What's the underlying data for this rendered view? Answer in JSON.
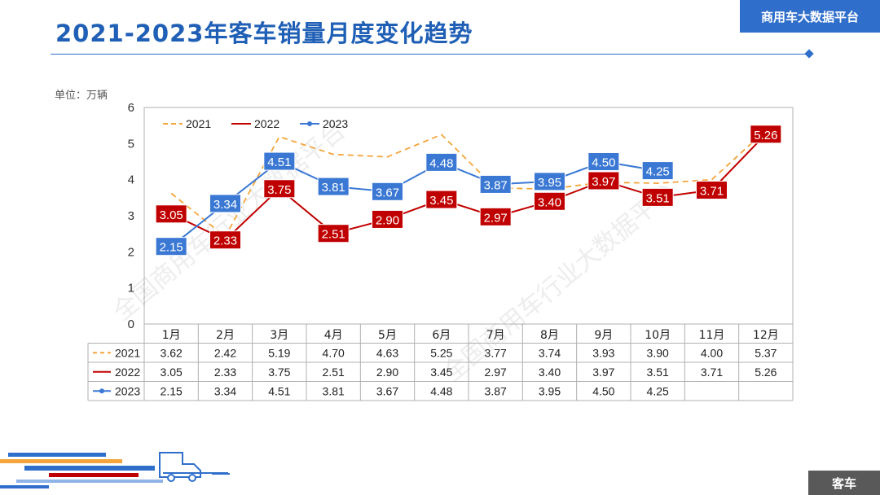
{
  "header": {
    "title": "2021-2023年客车销量月度变化趋势",
    "brand": "商用车大数据平台"
  },
  "unit_label": "单位：万辆",
  "watermark": "全国商用车行业大数据平台",
  "footer": {
    "tag": "客车"
  },
  "colors": {
    "s2021": "#f4a53c",
    "s2022": "#c00000",
    "s2023": "#3a78d4",
    "accent": "#2f6fcb"
  },
  "chart_data": {
    "type": "line",
    "categories": [
      "1月",
      "2月",
      "3月",
      "4月",
      "5月",
      "6月",
      "7月",
      "8月",
      "9月",
      "10月",
      "11月",
      "12月"
    ],
    "yticks": [
      "0",
      "1",
      "2",
      "3",
      "4",
      "5",
      "6"
    ],
    "ylim": [
      0,
      6
    ],
    "legend_position": "top-left",
    "series": [
      {
        "name": "2021",
        "values": [
          3.62,
          2.42,
          5.19,
          4.7,
          4.63,
          5.25,
          3.77,
          3.74,
          3.93,
          3.9,
          4.0,
          5.37
        ],
        "style": "dashed",
        "color": "#f4a53c"
      },
      {
        "name": "2022",
        "values": [
          3.05,
          2.33,
          3.75,
          2.51,
          2.9,
          3.45,
          2.97,
          3.4,
          3.97,
          3.51,
          3.71,
          5.26
        ],
        "style": "solid",
        "color": "#c00000"
      },
      {
        "name": "2023",
        "values": [
          2.15,
          3.34,
          4.51,
          3.81,
          3.67,
          4.48,
          3.87,
          3.95,
          4.5,
          4.25,
          null,
          null
        ],
        "style": "solid-dot",
        "color": "#3a78d4"
      }
    ],
    "table": {
      "rows": [
        {
          "series": "2021",
          "cells": [
            "3.62",
            "2.42",
            "5.19",
            "4.70",
            "4.63",
            "5.25",
            "3.77",
            "3.74",
            "3.93",
            "3.90",
            "4.00",
            "5.37"
          ]
        },
        {
          "series": "2022",
          "cells": [
            "3.05",
            "2.33",
            "3.75",
            "2.51",
            "2.90",
            "3.45",
            "2.97",
            "3.40",
            "3.97",
            "3.51",
            "3.71",
            "5.26"
          ]
        },
        {
          "series": "2023",
          "cells": [
            "2.15",
            "3.34",
            "4.51",
            "3.81",
            "3.67",
            "4.48",
            "3.87",
            "3.95",
            "4.50",
            "4.25",
            "",
            ""
          ]
        }
      ]
    }
  }
}
